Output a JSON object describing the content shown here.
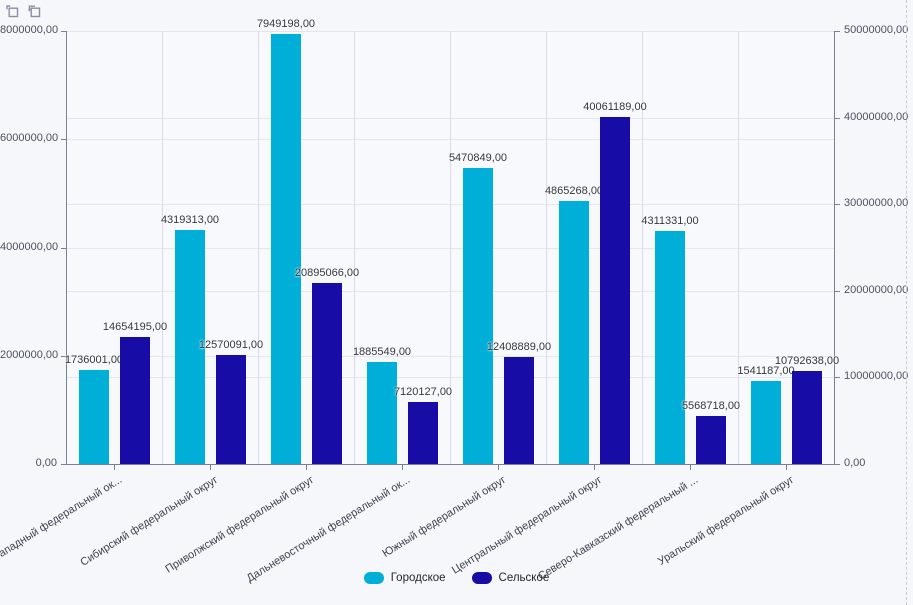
{
  "toolbar": {
    "zoom_select_tooltip": "Select area",
    "undo_zoom_tooltip": "Reset",
    "icon_color": "#8a90a0"
  },
  "chart_data": {
    "type": "bar",
    "title": "",
    "categories": [
      "Северо-Западный федеральный ок...",
      "Сибирский федеральный округ",
      "Приволжский федеральный округ",
      "Дальневосточный федеральный ок...",
      "Южный федеральный округ",
      "Центральный федеральный округ",
      "Северо-Кавказский федеральный ...",
      "Уральский федеральный округ"
    ],
    "series": [
      {
        "name": "Городское",
        "axis": "left",
        "color": "#00AFD7",
        "values": [
          1736001,
          4319313,
          7949198,
          1885549,
          5470849,
          4865268,
          4311331,
          1541187
        ],
        "value_labels": [
          "1736001,00",
          "4319313,00",
          "7949198,00",
          "1885549,00",
          "5470849,00",
          "4865268,00",
          "4311331,00",
          "1541187,00"
        ]
      },
      {
        "name": "Сельское",
        "axis": "right",
        "color": "#180CA6",
        "values": [
          14654195,
          12570091,
          20895066,
          7120127,
          12408889,
          40061189,
          5568718,
          10792638
        ],
        "value_labels": [
          "14654195,00",
          "12570091,00",
          "20895066,00",
          "7120127,00",
          "12408889,00",
          "40061189,00",
          "5568718,00",
          "10792638,00"
        ]
      }
    ],
    "left_axis": {
      "min": 0,
      "max": 8000000,
      "step": 2000000,
      "tick_labels": [
        "0,00",
        "2000000,00",
        "4000000,00",
        "6000000,00",
        "8000000,00"
      ]
    },
    "right_axis": {
      "min": 0,
      "max": 50000000,
      "step": 10000000,
      "tick_labels": [
        "0,00",
        "10000000,00",
        "20000000,00",
        "30000000,00",
        "40000000,00",
        "50000000,00"
      ]
    },
    "grid": true,
    "legend_position": "bottom"
  }
}
